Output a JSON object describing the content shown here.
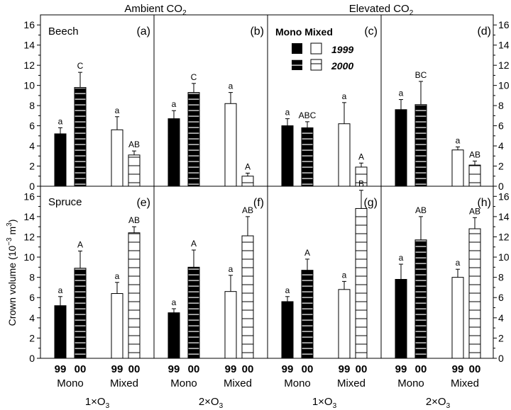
{
  "chart_data": {
    "type": "bar",
    "column_headers": [
      "Ambient CO",
      "Elevated CO"
    ],
    "co2_subscript": "2",
    "ylabel_main": "Crown volume (10",
    "ylabel_exp": "−3",
    "ylabel_unit": " m",
    "ylabel_unit_exp": "3",
    "ylabel_close": ")",
    "ylim": [
      0,
      17
    ],
    "yticks": [
      0,
      2,
      4,
      6,
      8,
      10,
      12,
      14,
      16
    ],
    "x_year_labels": [
      "99",
      "00",
      "99",
      "00"
    ],
    "x_group_labels": [
      "Mono",
      "Mixed"
    ],
    "ozone_labels": [
      "1×O",
      "2×O",
      "1×O",
      "2×O"
    ],
    "ozone_subscript": "3",
    "legend": {
      "header": "Mono Mixed",
      "years": [
        "1999",
        "2000"
      ]
    },
    "bar_order": [
      "Mono 1999",
      "Mono 2000",
      "Mixed 1999",
      "Mixed 2000"
    ],
    "species": [
      "Beech",
      "Spruce"
    ],
    "panels": [
      {
        "letter": "(a)",
        "species": "Beech",
        "co2": "Ambient",
        "o3": "1×O3",
        "values": [
          5.2,
          9.8,
          5.6,
          3.1
        ],
        "errors": [
          0.6,
          1.5,
          1.3,
          0.4
        ],
        "letters": [
          "a",
          "C",
          "a",
          "AB"
        ]
      },
      {
        "letter": "(b)",
        "species": "Beech",
        "co2": "Ambient",
        "o3": "2×O3",
        "values": [
          6.7,
          9.3,
          8.2,
          1.0
        ],
        "errors": [
          0.8,
          0.9,
          1.1,
          0.3
        ],
        "letters": [
          "a",
          "C",
          "a",
          "A"
        ]
      },
      {
        "letter": "(c)",
        "species": "Beech",
        "co2": "Elevated",
        "o3": "1×O3",
        "values": [
          6.0,
          5.8,
          6.2,
          1.9
        ],
        "errors": [
          0.7,
          0.6,
          2.1,
          0.4
        ],
        "letters": [
          "a",
          "ABC",
          "a",
          "A"
        ]
      },
      {
        "letter": "(d)",
        "species": "Beech",
        "co2": "Elevated",
        "o3": "2×O3",
        "values": [
          7.6,
          8.1,
          3.6,
          2.1
        ],
        "errors": [
          1.0,
          2.3,
          0.3,
          0.4
        ],
        "letters": [
          "a",
          "BC",
          "a",
          "AB"
        ]
      },
      {
        "letter": "(e)",
        "species": "Spruce",
        "co2": "Ambient",
        "o3": "1×O3",
        "values": [
          5.2,
          8.9,
          6.4,
          12.4
        ],
        "errors": [
          0.9,
          1.7,
          1.1,
          0.6
        ],
        "letters": [
          "a",
          "A",
          "a",
          "AB"
        ]
      },
      {
        "letter": "(f)",
        "species": "Spruce",
        "co2": "Ambient",
        "o3": "2×O3",
        "values": [
          4.5,
          9.0,
          6.6,
          12.1
        ],
        "errors": [
          0.4,
          1.7,
          1.6,
          1.9
        ],
        "letters": [
          "a",
          "A",
          "a",
          "AB"
        ]
      },
      {
        "letter": "(g)",
        "species": "Spruce",
        "co2": "Elevated",
        "o3": "1×O3",
        "values": [
          5.6,
          8.7,
          6.8,
          14.8
        ],
        "errors": [
          0.5,
          1.1,
          0.8,
          1.8
        ],
        "letters": [
          "a",
          "A",
          "a",
          "B"
        ]
      },
      {
        "letter": "(h)",
        "species": "Spruce",
        "co2": "Elevated",
        "o3": "2×O3",
        "values": [
          7.8,
          11.7,
          8.0,
          12.8
        ],
        "errors": [
          1.5,
          2.3,
          0.8,
          1.1
        ],
        "letters": [
          "a",
          "AB",
          "a",
          "AB"
        ]
      }
    ],
    "colors": {
      "solid": "#000000",
      "open": "#ffffff",
      "stripe": "#000000",
      "frame": "#000000"
    }
  }
}
